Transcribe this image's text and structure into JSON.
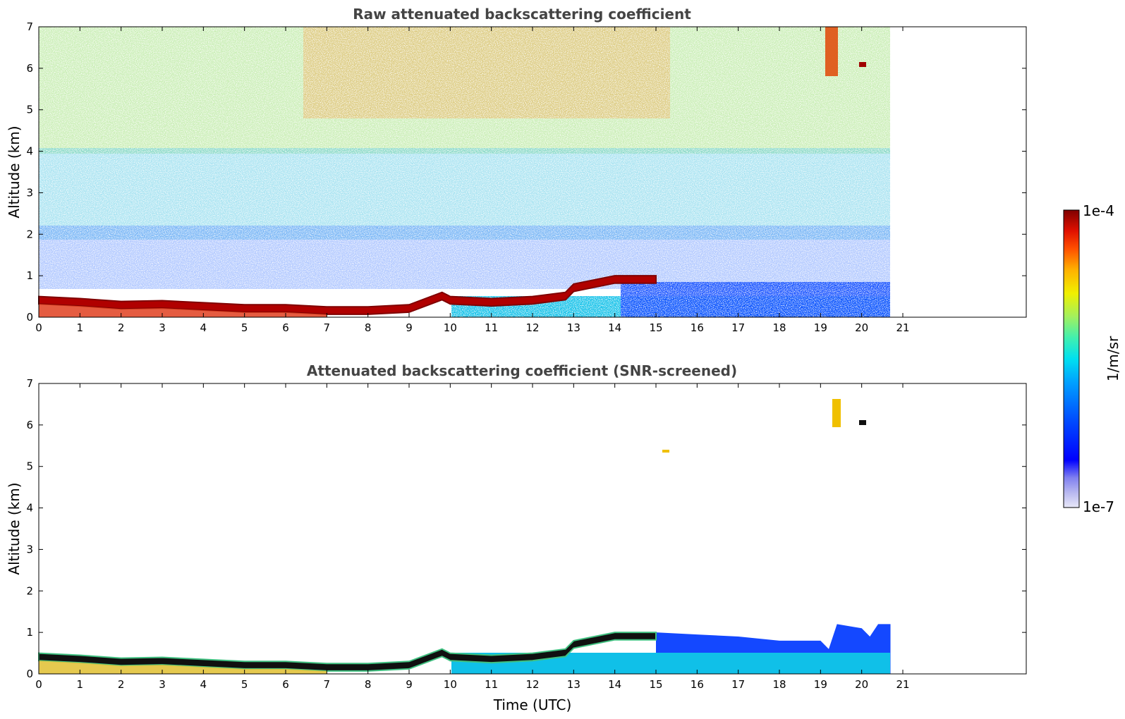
{
  "figure": {
    "colorbar": {
      "max_label": "1e-4",
      "min_label": "1e-7",
      "unit_label": "1/m/sr",
      "colors": [
        "#e8e8f8",
        "#b8b8f0",
        "#8080f0",
        "#0000ff",
        "#0050ff",
        "#00a0ff",
        "#00e0f0",
        "#40f0b0",
        "#a0f060",
        "#f0f000",
        "#ffb000",
        "#ff5000",
        "#e01000",
        "#800000"
      ]
    }
  },
  "chart_data": [
    {
      "type": "heatmap",
      "title": "Raw attenuated backscattering coefficient",
      "xlabel": "",
      "ylabel": "Altitude (km)",
      "xlim": [
        0,
        24
      ],
      "ylim": [
        0,
        7
      ],
      "xticks": [
        "0",
        "1",
        "2",
        "3",
        "4",
        "5",
        "6",
        "7",
        "8",
        "9",
        "10",
        "11",
        "12",
        "13",
        "14",
        "15",
        "16",
        "17",
        "18",
        "19",
        "20",
        "21"
      ],
      "yticks": [
        "0",
        "1",
        "2",
        "3",
        "4",
        "5",
        "6",
        "7"
      ],
      "data_end_time": 20.7,
      "boundary_layer_top_km": [
        [
          0,
          0.5
        ],
        [
          1,
          0.45
        ],
        [
          2,
          0.38
        ],
        [
          3,
          0.4
        ],
        [
          4,
          0.35
        ],
        [
          5,
          0.3
        ],
        [
          6,
          0.3
        ],
        [
          7,
          0.25
        ],
        [
          8,
          0.25
        ],
        [
          9,
          0.3
        ],
        [
          9.8,
          0.6
        ],
        [
          10,
          0.5
        ],
        [
          11,
          0.45
        ],
        [
          12,
          0.5
        ],
        [
          12.8,
          0.6
        ],
        [
          13,
          0.8
        ],
        [
          14,
          1.0
        ],
        [
          15,
          1.0
        ]
      ],
      "cloud_features": [
        {
          "time": [
            19.2,
            19.5
          ],
          "altitude_km": [
            5.9,
            7.0
          ]
        },
        {
          "time": [
            20.0,
            20.1
          ],
          "altitude_km": [
            6.0,
            6.1
          ]
        }
      ]
    },
    {
      "type": "heatmap",
      "title": "Attenuated backscattering coefficient (SNR-screened)",
      "xlabel": "Time (UTC)",
      "ylabel": "Altitude (km)",
      "xlim": [
        0,
        24
      ],
      "ylim": [
        0,
        7
      ],
      "xticks": [
        "0",
        "1",
        "2",
        "3",
        "4",
        "5",
        "6",
        "7",
        "8",
        "9",
        "10",
        "11",
        "12",
        "13",
        "14",
        "15",
        "16",
        "17",
        "18",
        "19",
        "20",
        "21"
      ],
      "yticks": [
        "0",
        "1",
        "2",
        "3",
        "4",
        "5",
        "6",
        "7"
      ],
      "data_end_time": 20.7,
      "cloud_features": [
        {
          "time": [
            19.3,
            19.5
          ],
          "altitude_km": [
            5.9,
            6.6
          ]
        },
        {
          "time": [
            20.0,
            20.1
          ],
          "altitude_km": [
            6.0,
            6.1
          ]
        },
        {
          "time": [
            15.2,
            15.3
          ],
          "altitude_km": [
            5.3,
            5.7
          ]
        }
      ]
    }
  ]
}
